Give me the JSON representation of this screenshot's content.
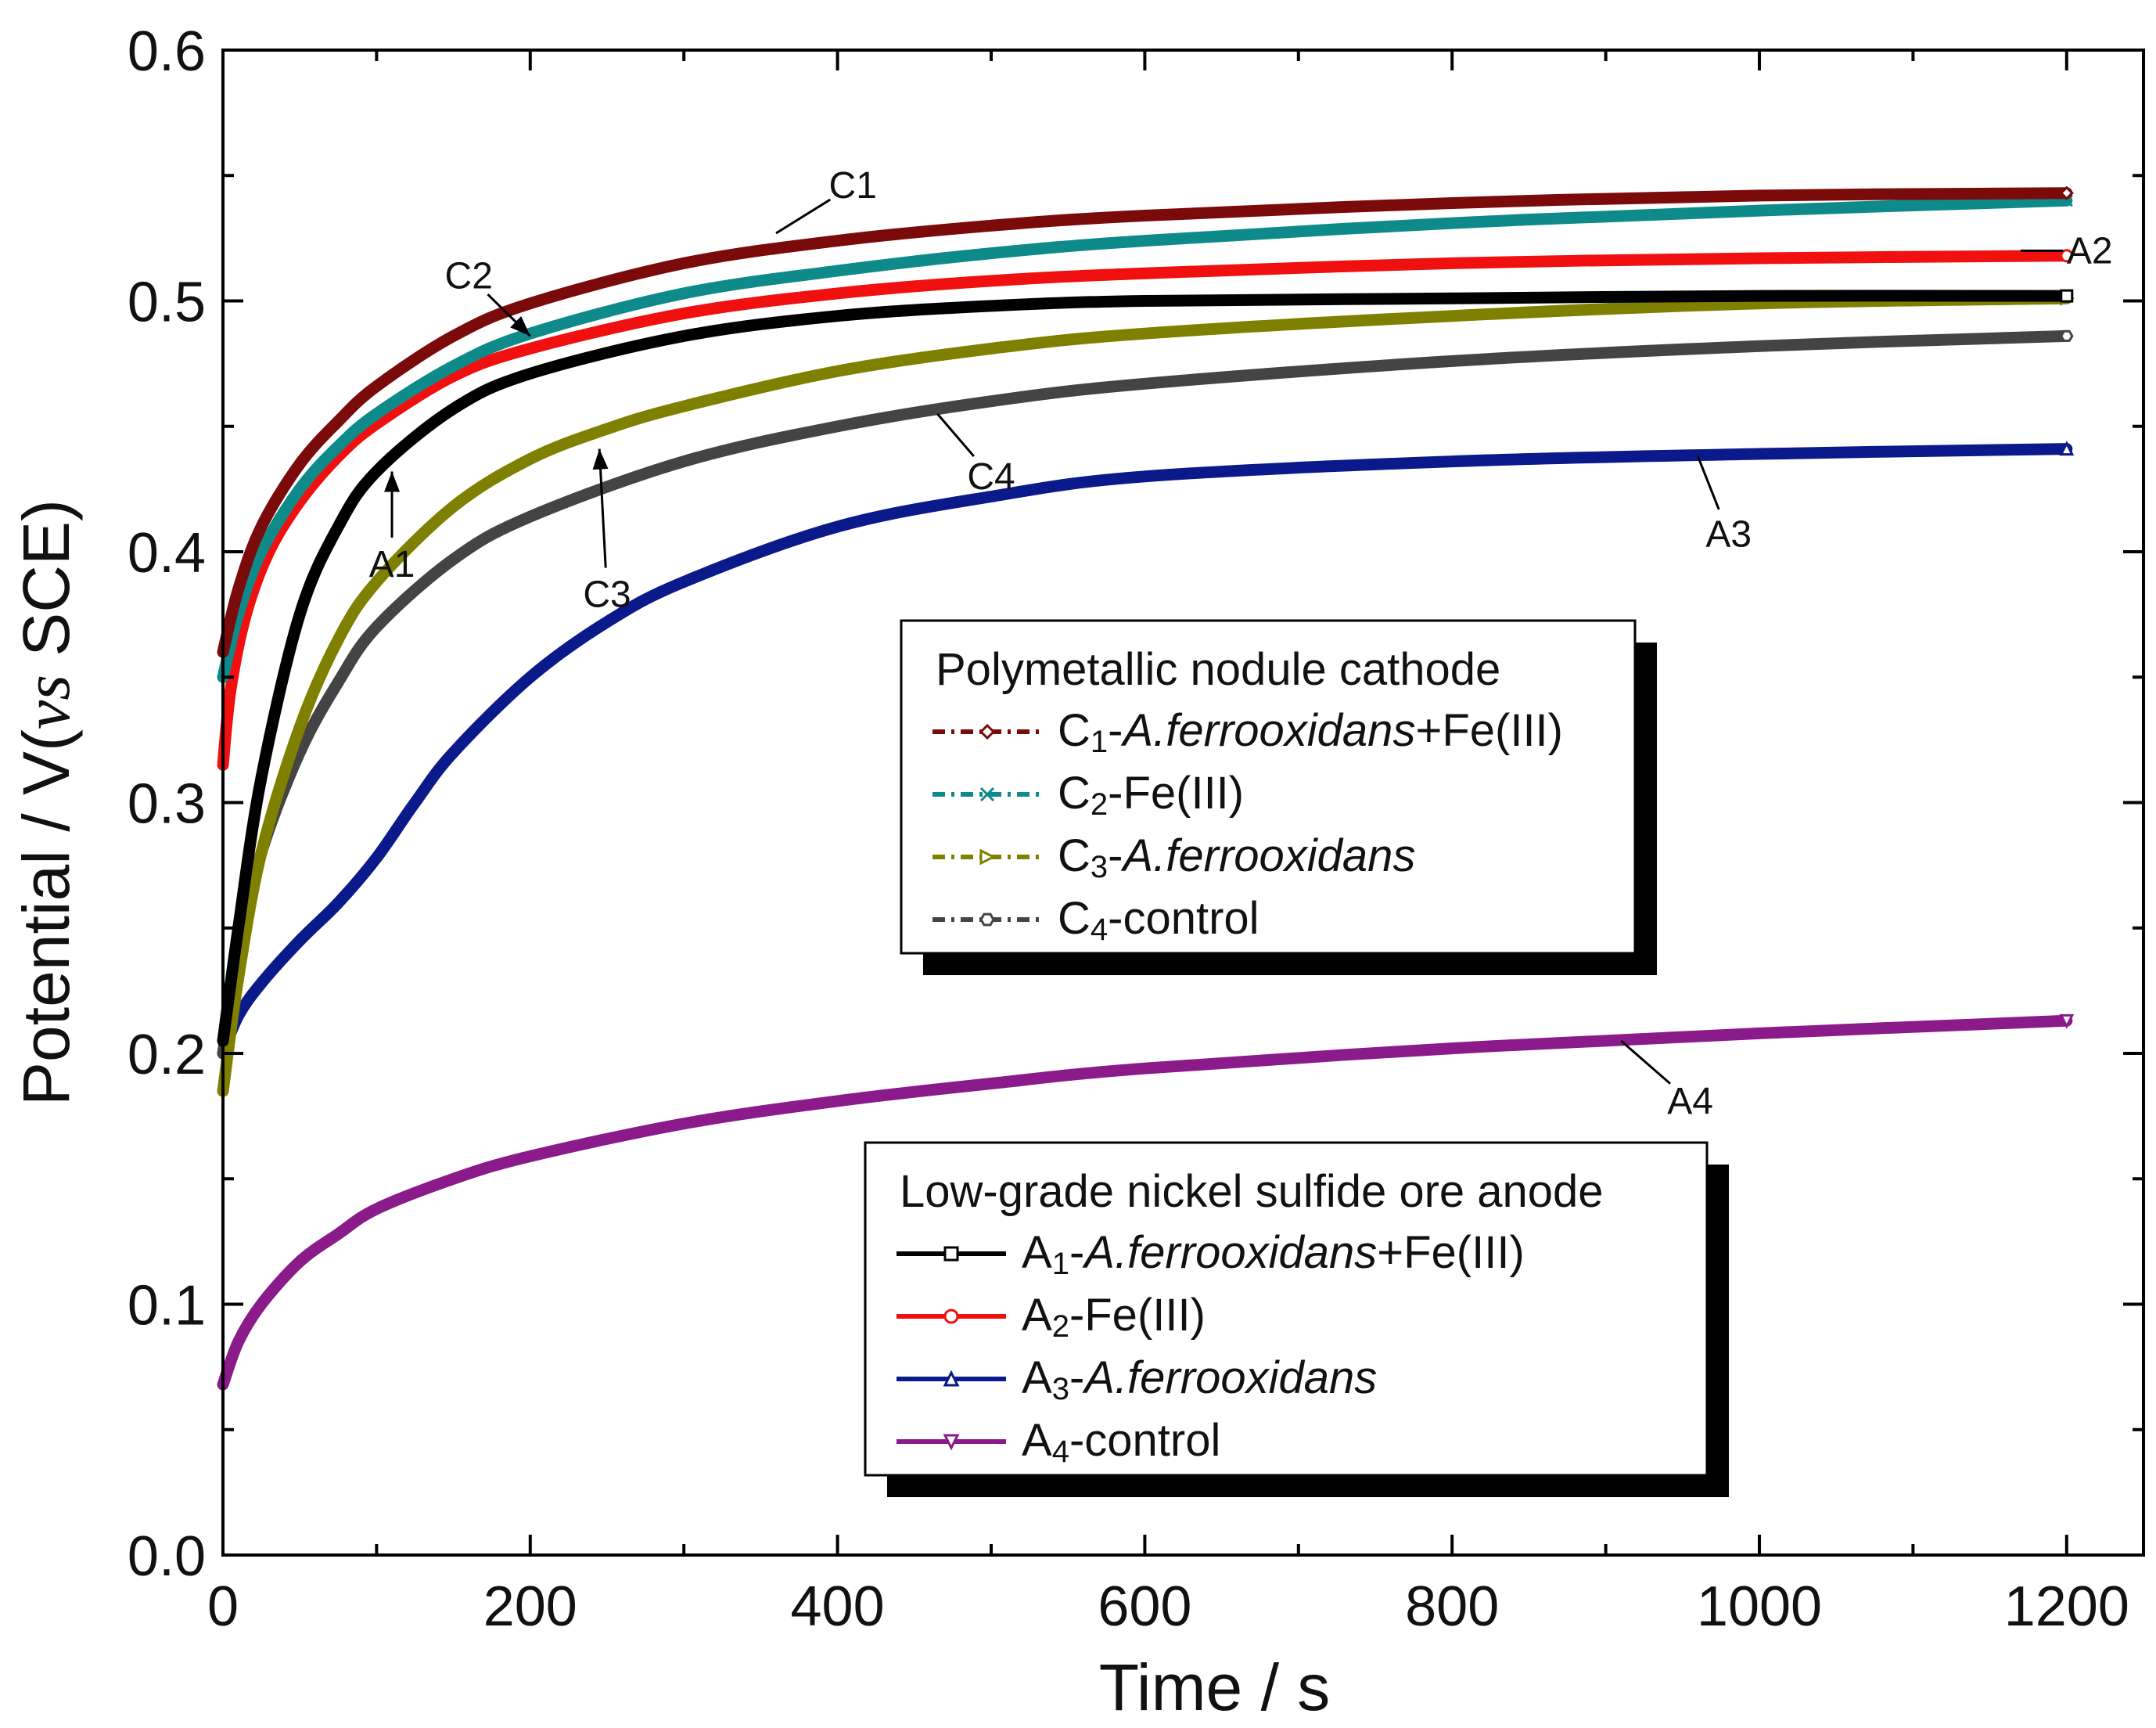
{
  "chart_data": {
    "type": "line",
    "xlabel": "Time / s",
    "ylabel_parts": [
      "Potential / V(",
      "vs",
      " SCE)"
    ],
    "xlim": [
      0,
      1250
    ],
    "ylim": [
      0,
      0.6
    ],
    "xticks": [
      "0",
      "200",
      "400",
      "600",
      "800",
      "1000",
      "1200"
    ],
    "xtick_values": [
      0,
      200,
      400,
      600,
      800,
      1000,
      1200
    ],
    "yticks": [
      "0.0",
      "0.1",
      "0.2",
      "0.3",
      "0.4",
      "0.5",
      "0.6"
    ],
    "ytick_values": [
      0,
      0.1,
      0.2,
      0.3,
      0.4,
      0.5,
      0.6
    ],
    "series": [
      {
        "id": "C1",
        "group": "cathode",
        "color": "#7B0A0A",
        "style": "dash-dot",
        "marker": "diamond",
        "x": [
          0,
          10,
          25,
          50,
          75,
          100,
          150,
          200,
          300,
          400,
          500,
          600,
          800,
          1000,
          1200
        ],
        "y": [
          0.36,
          0.385,
          0.41,
          0.435,
          0.452,
          0.466,
          0.486,
          0.499,
          0.515,
          0.524,
          0.53,
          0.534,
          0.539,
          0.542,
          0.543
        ]
      },
      {
        "id": "C2",
        "group": "cathode",
        "color": "#0E8A8A",
        "style": "dash-dot",
        "marker": "x",
        "x": [
          0,
          10,
          25,
          50,
          75,
          100,
          150,
          200,
          300,
          400,
          500,
          600,
          800,
          1000,
          1200
        ],
        "y": [
          0.35,
          0.375,
          0.4,
          0.425,
          0.442,
          0.455,
          0.474,
          0.487,
          0.503,
          0.512,
          0.519,
          0.524,
          0.531,
          0.536,
          0.54
        ]
      },
      {
        "id": "C3",
        "group": "cathode",
        "color": "#7F8000",
        "style": "dash-dot",
        "marker": "triangle-right",
        "x": [
          0,
          10,
          25,
          50,
          75,
          100,
          150,
          200,
          250,
          300,
          400,
          500,
          600,
          800,
          1000,
          1200
        ],
        "y": [
          0.185,
          0.23,
          0.28,
          0.33,
          0.365,
          0.388,
          0.418,
          0.437,
          0.449,
          0.458,
          0.472,
          0.481,
          0.487,
          0.494,
          0.499,
          0.501
        ]
      },
      {
        "id": "C4",
        "group": "cathode",
        "color": "#444444",
        "style": "dash-dot",
        "marker": "hexagon",
        "x": [
          0,
          10,
          25,
          50,
          75,
          100,
          150,
          200,
          300,
          400,
          500,
          600,
          800,
          1000,
          1200
        ],
        "y": [
          0.2,
          0.24,
          0.28,
          0.32,
          0.348,
          0.37,
          0.397,
          0.414,
          0.436,
          0.45,
          0.46,
          0.467,
          0.476,
          0.482,
          0.486
        ]
      },
      {
        "id": "A1",
        "group": "anode",
        "color": "#000000",
        "style": "solid",
        "marker": "square",
        "x": [
          0,
          10,
          25,
          50,
          75,
          100,
          150,
          200,
          300,
          400,
          500,
          600,
          800,
          1000,
          1200
        ],
        "y": [
          0.205,
          0.25,
          0.31,
          0.375,
          0.41,
          0.432,
          0.457,
          0.471,
          0.486,
          0.494,
          0.498,
          0.5,
          0.501,
          0.502,
          0.502
        ]
      },
      {
        "id": "A2",
        "group": "anode",
        "color": "#F01010",
        "style": "solid",
        "marker": "circle",
        "x": [
          0,
          5,
          15,
          30,
          50,
          75,
          100,
          150,
          200,
          300,
          400,
          500,
          600,
          800,
          1000,
          1200
        ],
        "y": [
          0.315,
          0.345,
          0.375,
          0.4,
          0.42,
          0.438,
          0.451,
          0.47,
          0.481,
          0.495,
          0.503,
          0.508,
          0.511,
          0.515,
          0.517,
          0.518
        ]
      },
      {
        "id": "A3",
        "group": "anode",
        "color": "#0A1A8A",
        "style": "solid",
        "marker": "triangle-up",
        "x": [
          0,
          10,
          25,
          50,
          75,
          100,
          125,
          150,
          200,
          250,
          300,
          400,
          500,
          600,
          800,
          1000,
          1200
        ],
        "y": [
          0.2,
          0.215,
          0.228,
          0.245,
          0.26,
          0.278,
          0.3,
          0.32,
          0.35,
          0.372,
          0.388,
          0.41,
          0.422,
          0.43,
          0.436,
          0.439,
          0.441
        ]
      },
      {
        "id": "A4",
        "group": "anode",
        "color": "#8B1A8B",
        "style": "solid",
        "marker": "triangle-down",
        "x": [
          0,
          10,
          25,
          50,
          75,
          100,
          150,
          200,
          300,
          400,
          500,
          600,
          800,
          1000,
          1200
        ],
        "y": [
          0.068,
          0.085,
          0.1,
          0.117,
          0.128,
          0.138,
          0.15,
          0.159,
          0.172,
          0.181,
          0.188,
          0.194,
          0.202,
          0.208,
          0.213
        ]
      }
    ],
    "annotations": [
      {
        "label": "C1",
        "point": [
          360,
          0.527
        ],
        "text_at": [
          410,
          0.546
        ]
      },
      {
        "label": "C2",
        "point": [
          200,
          0.486
        ],
        "text_at": [
          160,
          0.51
        ],
        "arrow": true
      },
      {
        "label": "A2",
        "point": [
          1170,
          0.52
        ],
        "text_at": [
          1215,
          0.52
        ]
      },
      {
        "label": "A1",
        "point": [
          110,
          0.432
        ],
        "text_at": [
          110,
          0.395
        ],
        "arrow": true
      },
      {
        "label": "C3",
        "point": [
          245,
          0.441
        ],
        "text_at": [
          250,
          0.383
        ],
        "arrow": true
      },
      {
        "label": "C4",
        "point": [
          465,
          0.455
        ],
        "text_at": [
          500,
          0.43
        ]
      },
      {
        "label": "A3",
        "point": [
          960,
          0.438
        ],
        "text_at": [
          980,
          0.407
        ]
      },
      {
        "label": "A4",
        "point": [
          910,
          0.205
        ],
        "text_at": [
          955,
          0.181
        ]
      }
    ],
    "legends": [
      {
        "id": "cathode",
        "title": "Polymetallic nodule cathode",
        "entries": [
          {
            "series": "C1",
            "prefix": "C",
            "sub": "1",
            "pre": "-",
            "italic": "A.ferrooxidans",
            "post": "+Fe(III)"
          },
          {
            "series": "C2",
            "prefix": "C",
            "sub": "2",
            "pre": "-Fe(III)",
            "italic": "",
            "post": ""
          },
          {
            "series": "C3",
            "prefix": "C",
            "sub": "3",
            "pre": "-",
            "italic": "A.ferrooxidans",
            "post": ""
          },
          {
            "series": "C4",
            "prefix": "C",
            "sub": "4",
            "pre": "-control",
            "italic": "",
            "post": ""
          }
        ]
      },
      {
        "id": "anode",
        "title": "Low-grade nickel sulfide ore anode",
        "entries": [
          {
            "series": "A1",
            "prefix": "A",
            "sub": "1",
            "pre": "-",
            "italic": "A.ferrooxidans",
            "post": "+Fe(III)"
          },
          {
            "series": "A2",
            "prefix": "A",
            "sub": "2",
            "pre": "-Fe(III)",
            "italic": "",
            "post": ""
          },
          {
            "series": "A3",
            "prefix": "A",
            "sub": "3",
            "pre": "-",
            "italic": "A.ferrooxidans",
            "post": ""
          },
          {
            "series": "A4",
            "prefix": "A",
            "sub": "4",
            "pre": "-control",
            "italic": "",
            "post": ""
          }
        ]
      }
    ]
  }
}
